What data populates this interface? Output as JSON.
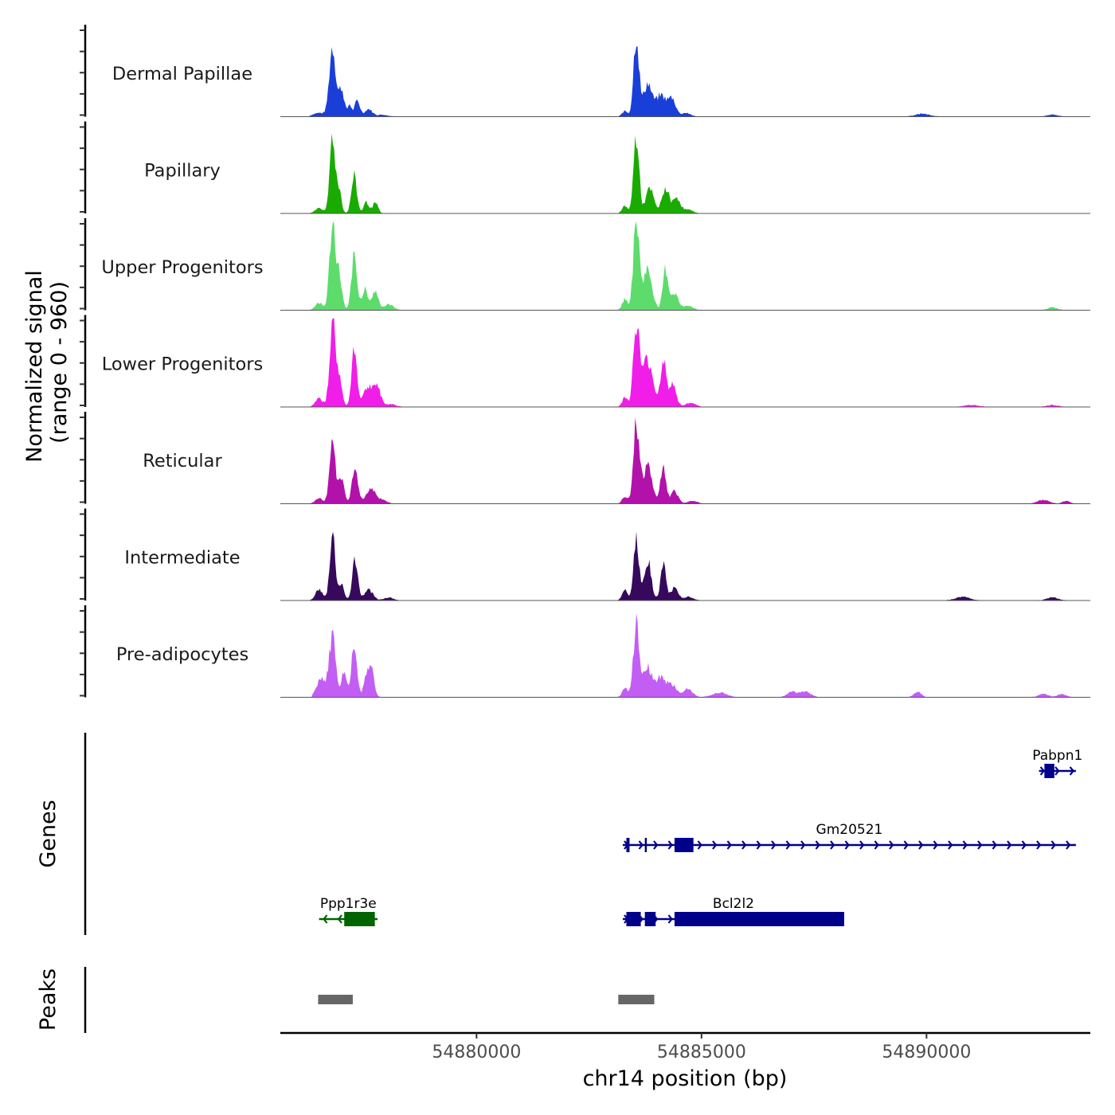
{
  "chart_data": {
    "type": "area",
    "title": "",
    "xlabel": "chr14 position (bp)",
    "ylabel_line1": "Normalized signal",
    "ylabel_line2": "(range 0 - 960)",
    "y_range": [
      0,
      960
    ],
    "x_range": [
      54875640,
      54893640
    ],
    "x_ticks": [
      54880000,
      54885000,
      54890000
    ],
    "x_tick_labels": [
      "54880000",
      "54885000",
      "54890000"
    ],
    "tracks": [
      {
        "name": "Dermal Papillae",
        "color": "#1a3fd9",
        "peaks": [
          [
            54876500,
            40,
            130
          ],
          [
            54876800,
            760,
            70
          ],
          [
            54877000,
            300,
            60
          ],
          [
            54877180,
            130,
            40
          ],
          [
            54877350,
            170,
            60
          ],
          [
            54877600,
            80,
            80
          ],
          [
            54877900,
            20,
            120
          ],
          [
            54883300,
            60,
            60
          ],
          [
            54883550,
            880,
            60
          ],
          [
            54883800,
            350,
            90
          ],
          [
            54884100,
            230,
            120
          ],
          [
            54884350,
            180,
            80
          ],
          [
            54884650,
            40,
            100
          ],
          [
            54889900,
            30,
            150
          ],
          [
            54892800,
            20,
            120
          ]
        ]
      },
      {
        "name": "Papillary",
        "color": "#1aab00",
        "peaks": [
          [
            54876500,
            60,
            80
          ],
          [
            54876800,
            860,
            60
          ],
          [
            54876950,
            250,
            50
          ],
          [
            54877280,
            400,
            60
          ],
          [
            54877550,
            120,
            60
          ],
          [
            54877750,
            110,
            60
          ],
          [
            54883300,
            80,
            60
          ],
          [
            54883550,
            840,
            60
          ],
          [
            54883850,
            260,
            90
          ],
          [
            54884200,
            270,
            80
          ],
          [
            54884450,
            170,
            80
          ],
          [
            54884700,
            40,
            100
          ]
        ]
      },
      {
        "name": "Upper Progenitors",
        "color": "#5ddc6c",
        "peaks": [
          [
            54876500,
            80,
            80
          ],
          [
            54876800,
            930,
            65
          ],
          [
            54876950,
            350,
            60
          ],
          [
            54877280,
            560,
            60
          ],
          [
            54877520,
            230,
            70
          ],
          [
            54877750,
            200,
            70
          ],
          [
            54878050,
            60,
            100
          ],
          [
            54883300,
            120,
            60
          ],
          [
            54883550,
            930,
            65
          ],
          [
            54883800,
            430,
            100
          ],
          [
            54884200,
            430,
            60
          ],
          [
            54884400,
            180,
            80
          ],
          [
            54884700,
            50,
            100
          ],
          [
            54892800,
            30,
            100
          ]
        ]
      },
      {
        "name": "Lower Progenitors",
        "color": "#f01ee8",
        "peaks": [
          [
            54876500,
            90,
            80
          ],
          [
            54876800,
            900,
            65
          ],
          [
            54876950,
            300,
            60
          ],
          [
            54877280,
            620,
            60
          ],
          [
            54877600,
            210,
            120
          ],
          [
            54877800,
            170,
            80
          ],
          [
            54878100,
            30,
            100
          ],
          [
            54883300,
            100,
            60
          ],
          [
            54883550,
            850,
            65
          ],
          [
            54883800,
            500,
            120
          ],
          [
            54884150,
            500,
            60
          ],
          [
            54884350,
            250,
            80
          ],
          [
            54884750,
            40,
            120
          ],
          [
            54891000,
            20,
            150
          ],
          [
            54892800,
            20,
            120
          ]
        ]
      },
      {
        "name": "Reticular",
        "color": "#b212aa",
        "peaks": [
          [
            54876500,
            60,
            80
          ],
          [
            54876800,
            680,
            65
          ],
          [
            54877000,
            270,
            60
          ],
          [
            54877300,
            350,
            70
          ],
          [
            54877650,
            160,
            100
          ],
          [
            54877900,
            40,
            100
          ],
          [
            54883300,
            80,
            60
          ],
          [
            54883550,
            840,
            65
          ],
          [
            54883800,
            400,
            100
          ],
          [
            54884150,
            410,
            60
          ],
          [
            54884400,
            130,
            80
          ],
          [
            54884800,
            30,
            100
          ],
          [
            54892600,
            40,
            120
          ],
          [
            54893100,
            30,
            80
          ]
        ]
      },
      {
        "name": "Intermediate",
        "color": "#36095c",
        "peaks": [
          [
            54876500,
            110,
            80
          ],
          [
            54876800,
            690,
            60
          ],
          [
            54877000,
            170,
            60
          ],
          [
            54877300,
            420,
            60
          ],
          [
            54877600,
            110,
            100
          ],
          [
            54878050,
            30,
            100
          ],
          [
            54883300,
            120,
            60
          ],
          [
            54883550,
            650,
            60
          ],
          [
            54883800,
            430,
            80
          ],
          [
            54884150,
            380,
            60
          ],
          [
            54884400,
            140,
            80
          ],
          [
            54884700,
            40,
            100
          ],
          [
            54890800,
            40,
            150
          ],
          [
            54892800,
            30,
            120
          ]
        ]
      },
      {
        "name": "Pre-adipocytes",
        "color": "#c35ef5",
        "peaks": [
          [
            54876550,
            200,
            100
          ],
          [
            54876800,
            680,
            70
          ],
          [
            54877050,
            250,
            60
          ],
          [
            54877280,
            610,
            60
          ],
          [
            54877550,
            220,
            60
          ],
          [
            54877670,
            270,
            60
          ],
          [
            54883300,
            100,
            60
          ],
          [
            54883550,
            760,
            65
          ],
          [
            54883800,
            320,
            100
          ],
          [
            54884100,
            220,
            100
          ],
          [
            54884350,
            130,
            100
          ],
          [
            54884700,
            90,
            100
          ],
          [
            54885400,
            50,
            150
          ],
          [
            54887000,
            60,
            100
          ],
          [
            54887300,
            60,
            120
          ],
          [
            54889800,
            60,
            80
          ],
          [
            54892600,
            40,
            100
          ],
          [
            54893000,
            30,
            100
          ]
        ]
      }
    ],
    "genes_label": "Genes",
    "genes": [
      {
        "name": "Pabpn1",
        "color": "#00008b",
        "strand": "+",
        "start": 54892500,
        "end": 54893320,
        "row": 1,
        "exons": [
          [
            54892620,
            54892840
          ]
        ]
      },
      {
        "name": "Gm20521",
        "color": "#00008b",
        "strand": "+",
        "start": 54883250,
        "end": 54893320,
        "row": 2,
        "exons": [
          [
            54883330,
            54883400
          ],
          [
            54883740,
            54883780
          ],
          [
            54884400,
            54884820
          ]
        ]
      },
      {
        "name": "Bcl2l2",
        "color": "#00008b",
        "strand": "+",
        "start": 54883250,
        "end": 54888170,
        "row": 3,
        "exons": [
          [
            54883330,
            54883650
          ],
          [
            54883740,
            54883980
          ],
          [
            54884400,
            54888170
          ]
        ]
      },
      {
        "name": "Ppp1r3e",
        "color": "#006400",
        "strand": "-",
        "start": 54876500,
        "end": 54877800,
        "row": 3,
        "exons": [
          [
            54877060,
            54877740
          ]
        ]
      }
    ],
    "peaks_label": "Peaks",
    "peak_color": "#666666",
    "peak_regions": [
      [
        54876480,
        54877250
      ],
      [
        54883150,
        54883950
      ]
    ]
  }
}
